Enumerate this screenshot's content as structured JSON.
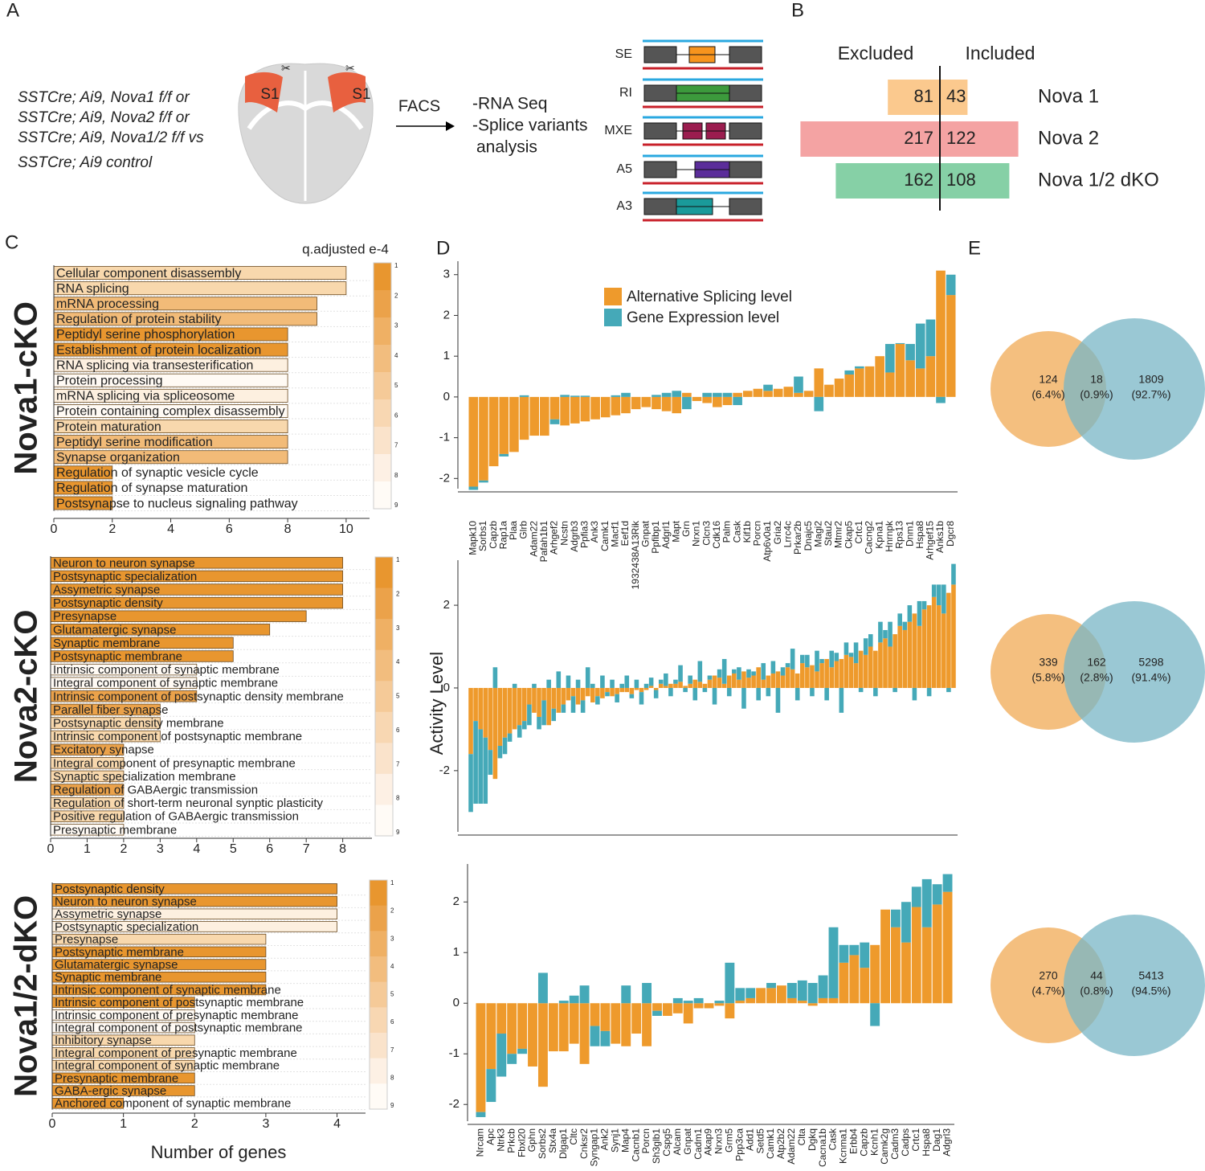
{
  "panel_labels": [
    "A",
    "B",
    "C",
    "D",
    "E"
  ],
  "panel_a": {
    "genotypes": [
      "SSTCre; Ai9, Nova1 f/f or",
      "SSTCre; Ai9, Nova2 f/f or",
      "SSTCre; Ai9, Nova1/2 f/f vs",
      "SSTCre; Ai9 control"
    ],
    "regions": [
      "S1",
      "S1"
    ],
    "facs": "FACS",
    "analysis": [
      "-RNA Seq",
      "-Splice variants",
      "analysis"
    ],
    "events": [
      "SE",
      "RI",
      "MXE",
      "A5",
      "A3"
    ]
  },
  "chart_data": [
    {
      "type": "diverging_bar",
      "categories": [
        "Nova 1",
        "Nova 2",
        "Nova 1/2 dKO"
      ],
      "colors": [
        "#fbc98e",
        "#f4a3a3",
        "#86d0a6"
      ],
      "series": [
        {
          "name": "Excluded",
          "values": [
            81,
            217,
            162
          ]
        },
        {
          "name": "Included",
          "values": [
            43,
            122,
            108
          ]
        }
      ]
    },
    {
      "type": "hbar",
      "row_label": "Nova1-cKO",
      "row_color": "#f7b777",
      "xlim": [
        0,
        10.8
      ],
      "xticks": [
        0,
        2,
        4,
        6,
        8,
        10
      ],
      "categories": [
        "Cellular component disassembly",
        "RNA splicing",
        "mRNA processing",
        "Regulation of protein stability",
        "Peptidyl serine phosphorylation",
        "Establishment of protein localization",
        "RNA splicing via transesterification",
        "Protein processing",
        "mRNA splicing via spliceosome",
        "Protein containing complex disassembly",
        "Protein maturation",
        "Peptidyl serine modification",
        "Synapse organization",
        "Regulation of synaptic vesicle cycle",
        "Regulation of synapse maturation",
        "Postsynapse to nucleus signaling pathway"
      ],
      "values": [
        10,
        10,
        9,
        9,
        8,
        8,
        8,
        8,
        8,
        8,
        8,
        8,
        8,
        2,
        2,
        2
      ],
      "colors": [
        "#f8d8ad",
        "#f8d8ad",
        "#f2bb78",
        "#f2bb78",
        "#e8962f",
        "#e8962f",
        "#fdf0e0",
        "#fffaf4",
        "#fdf0e0",
        "#fffaf4",
        "#f8d8ad",
        "#f2bb78",
        "#f2bb78",
        "#e8962f",
        "#e8962f",
        "#e8962f"
      ],
      "colorbar": {
        "label": "q.adjusted e-4",
        "ticks": [
          1,
          2,
          3,
          4,
          5,
          6,
          7,
          8,
          9
        ],
        "colors": [
          "#e8962f",
          "#eba24a",
          "#efb064",
          "#f2bd7e",
          "#f5ca98",
          "#f8d7b2",
          "#fae3cb",
          "#fdf0e4",
          "#fffbf6"
        ]
      }
    },
    {
      "type": "hbar",
      "row_label": "Nova2-cKO",
      "row_color": "#f4a0a0",
      "xlim": [
        0,
        8.8
      ],
      "xticks": [
        0,
        1,
        2,
        3,
        4,
        5,
        6,
        7,
        8
      ],
      "categories": [
        "Neuron to neuron synapse",
        "Postsynaptic specialization",
        "Assymetric synapse",
        "Postsynaptic density",
        "Presynapse",
        "Glutamatergic synapse",
        "Synaptic membrane",
        "Postsynaptic membrane",
        "Intrinsic component of synaptic membrane",
        "Integral component of synaptic membrane",
        "Intrinsic component of postsynaptic density membrane",
        "Parallel fiber synapse",
        "Postsynaptic density membrane",
        "Intrinsic component of postsynaptic membrane",
        "Excitatory synapse",
        "Integral component of presynaptic membrane",
        "Synaptic specialization membrane",
        "Regulation of GABAergic transmission",
        "Regulation of short-term neuronal synptic plasticity",
        "Positive regulation of GABAergic transmission",
        "Presynaptic membrane"
      ],
      "values": [
        8,
        8,
        8,
        8,
        7,
        6,
        5,
        5,
        4,
        4,
        4,
        3,
        3,
        3,
        2,
        2,
        2,
        2,
        2,
        2,
        2
      ],
      "colors": [
        "#e8962f",
        "#e8962f",
        "#e8962f",
        "#e8962f",
        "#e8962f",
        "#e8962f",
        "#e8962f",
        "#e8962f",
        "#fffaf4",
        "#fffaf4",
        "#eba24a",
        "#eba24a",
        "#f8d8ad",
        "#f8d8ad",
        "#eba24a",
        "#f8d8ad",
        "#f8d8ad",
        "#eba24a",
        "#f8d8ad",
        "#f8d8ad",
        "#fffaf4"
      ],
      "colorbar": {
        "ticks": [
          1,
          2,
          3,
          4,
          5,
          6,
          7,
          8,
          9
        ],
        "colors": [
          "#e8962f",
          "#eba24a",
          "#efb064",
          "#f2bd7e",
          "#f5ca98",
          "#f8d7b2",
          "#fae3cb",
          "#fdf0e4",
          "#fffbf6"
        ]
      }
    },
    {
      "type": "hbar",
      "row_label": "Nova1/2-dKO",
      "row_color": "#5fc08f",
      "xlim": [
        0,
        4.4
      ],
      "xticks": [
        0,
        1,
        2,
        3,
        4
      ],
      "xlabel": "Number of genes",
      "categories": [
        "Postsynaptic density",
        "Neuron to neuron synapse",
        "Assymetric synapse",
        "Postsynaptic specialization",
        "Presynapse",
        "Postsynaptic membrane",
        "Glutamatergic synapse",
        "Synaptic membrane",
        "Intrinsic component of synaptic membrane",
        "Intrinsic component of postsynaptic membrane",
        "Intrinsic component of presynaptic membrane",
        "Integral component of postsynaptic membrane",
        "Inhibitory synapse",
        "Integral component of presynaptic membrane",
        "Integral component of synaptic membrane",
        "Presynaptic membrane",
        "GABA-ergic synapse",
        "Anchored component of synaptic membrane"
      ],
      "values": [
        4,
        4,
        4,
        4,
        3,
        3,
        3,
        3,
        3,
        2,
        2,
        2,
        2,
        2,
        2,
        2,
        2,
        1
      ],
      "colors": [
        "#e8962f",
        "#e8962f",
        "#fdf0e0",
        "#fdf0e0",
        "#f8d8ad",
        "#e8962f",
        "#e8962f",
        "#e8962f",
        "#e8962f",
        "#e8962f",
        "#fffaf4",
        "#fffaf4",
        "#f8d8ad",
        "#f8d8ad",
        "#f8d8ad",
        "#e8962f",
        "#e8962f",
        "#e8962f"
      ],
      "colorbar": {
        "ticks": [
          1,
          2,
          3,
          4,
          5,
          6,
          7,
          8,
          9
        ],
        "colors": [
          "#e8962f",
          "#eba24a",
          "#efb064",
          "#f2bd7e",
          "#f5ca98",
          "#f8d7b2",
          "#fae3cb",
          "#fdf0e4",
          "#fffbf6"
        ]
      }
    },
    {
      "type": "stacked_bar",
      "ylim": [
        -2.25,
        3.33
      ],
      "yticks": [
        -2,
        -1,
        0,
        1,
        2,
        3
      ],
      "categories": [
        "Mapk10",
        "Sorbs1",
        "Capzb",
        "Rap1a",
        "Plaa",
        "Glrb",
        "Adam22",
        "Pafah1b1",
        "Arhgef2",
        "Ncstn",
        "Adgrb3",
        "Ppfia3",
        "Ank3",
        "Camk1",
        "Macf1",
        "Eef1d",
        "1932438A13Rik",
        "Gnpat",
        "Ppfibp1",
        "Adgrl1",
        "Mapt",
        "Grn",
        "Nrxn1",
        "Clcn3",
        "Cdk16",
        "Palm",
        "Cask",
        "Kif1b",
        "Porcn",
        "Atp6v0a1",
        "Gria2",
        "Lrrc4c",
        "Prkar2b",
        "Dnajc5",
        "Magi2",
        "Stau2",
        "Mtmr2",
        "Ckap5",
        "Crtc1",
        "Cacng2",
        "Kpna1",
        "Hnrnpk",
        "Rps13",
        "Dnm1",
        "Hspa8",
        "Arhgef15",
        "Anks1b",
        "Dgcr8"
      ],
      "series": [
        {
          "name": "Alternative Splicing level",
          "color": "#ee9a2c",
          "values": [
            -2.2,
            -2.05,
            -1.7,
            -1.4,
            -1.35,
            -1.05,
            -0.95,
            -0.95,
            -0.55,
            -0.7,
            -0.65,
            -0.6,
            -0.55,
            -0.5,
            -0.45,
            -0.4,
            -0.3,
            -0.25,
            -0.3,
            -0.35,
            -0.4,
            0.1,
            -0.1,
            -0.15,
            -0.25,
            -0.2,
            0.1,
            0.15,
            0.2,
            0.15,
            0.2,
            0.25,
            0.1,
            0.15,
            0.7,
            0.3,
            0.45,
            0.55,
            0.7,
            0.75,
            1.0,
            0.6,
            1.3,
            0.9,
            0.7,
            1.0,
            3.1,
            2.5
          ]
        },
        {
          "name": "Gene Expression level",
          "color": "#45a9b8",
          "values": [
            -0.08,
            -0.05,
            0,
            -0.06,
            0,
            0.04,
            0,
            0,
            -0.12,
            0.05,
            0.03,
            0.03,
            0,
            0,
            0.04,
            0.1,
            0,
            0,
            0.05,
            0.1,
            0.15,
            -0.3,
            0,
            0.1,
            0.1,
            0.1,
            -0.2,
            0,
            0,
            0.15,
            0,
            0,
            0.4,
            0,
            -0.35,
            0,
            0,
            0.1,
            0.05,
            0,
            0,
            0.7,
            0.02,
            0.4,
            1.1,
            0.9,
            -0.15,
            0.5
          ]
        }
      ]
    },
    {
      "type": "stacked_bar",
      "ylim": [
        -3.48,
        3.09
      ],
      "yticks": [
        -2,
        0,
        2
      ],
      "ylabel": "Activity Level",
      "series": [
        {
          "color": "#ee9a2c",
          "values": [
            -1.6,
            -0.8,
            -1.0,
            -1.2,
            -1.5,
            -2.2,
            -1.4,
            -1.2,
            -1.1,
            -1.0,
            -0.9,
            -0.8,
            -0.4,
            -0.6,
            -0.7,
            -0.3,
            -0.9,
            -0.5,
            -0.6,
            -0.4,
            -0.3,
            -0.2,
            -0.4,
            -0.3,
            -0.2,
            -0.35,
            -0.2,
            -0.25,
            -0.1,
            -0.2,
            -0.15,
            -0.1,
            -0.1,
            -0.15,
            -0.05,
            -0.1,
            -0.05,
            0.05,
            -0.05,
            0.1,
            0.05,
            0.1,
            0.1,
            0.15,
            0.05,
            0.1,
            0.2,
            0.15,
            0.1,
            0.2,
            0.3,
            0.25,
            0.1,
            0.3,
            0.35,
            0.2,
            0.4,
            0.25,
            0.3,
            0.5,
            0.2,
            0.3,
            0.35,
            0.4,
            0.3,
            0.5,
            0.45,
            0.35,
            0.6,
            0.5,
            0.55,
            0.4,
            0.6,
            0.7,
            0.5,
            0.65,
            0.7,
            0.8,
            0.75,
            0.6,
            0.9,
            0.8,
            1.0,
            0.9,
            1.1,
            1.2,
            1.0,
            1.3,
            1.5,
            1.4,
            1.6,
            1.8,
            1.5,
            1.9,
            2.0,
            2.2,
            2.0,
            1.8,
            2.3,
            2.5
          ]
        },
        {
          "color": "#45a9b8",
          "values": [
            -1.4,
            -2.0,
            -1.8,
            -1.6,
            -0.6,
            0.5,
            -0.3,
            -0.4,
            -0.2,
            0.1,
            -0.3,
            -0.2,
            -0.5,
            0.1,
            -0.3,
            -0.6,
            0.2,
            -0.3,
            0.4,
            -0.2,
            0.3,
            -0.4,
            0.2,
            -0.3,
            0.5,
            0.1,
            -0.2,
            0.3,
            -0.1,
            0.2,
            -0.2,
            0.1,
            0.3,
            -0.1,
            0.2,
            -0.3,
            0.1,
            0.2,
            -0.2,
            0.1,
            0.3,
            -0.2,
            0.1,
            0.4,
            -0.1,
            0.2,
            -0.3,
            0.5,
            -0.1,
            0.1,
            -0.4,
            0.2,
            0.6,
            -0.2,
            0.1,
            0.3,
            -0.5,
            0.2,
            0.1,
            -0.3,
            0.4,
            -0.2,
            0.3,
            -0.6,
            0.2,
            0.1,
            0.5,
            -0.3,
            0.2,
            0.3,
            -0.2,
            0.5,
            0.1,
            -0.3,
            0.4,
            0.2,
            -0.6,
            0.3,
            0.1,
            0.5,
            -0.1,
            0.4,
            0.3,
            -0.2,
            0.5,
            0.2,
            0.6,
            -0.1,
            0.3,
            0.2,
            0.4,
            -0.3,
            0.6,
            0.2,
            -0.2,
            0.3,
            0.5,
            0.7,
            -0.1,
            0.5
          ]
        }
      ]
    },
    {
      "type": "stacked_bar",
      "ylim": [
        -2.33,
        2.75
      ],
      "yticks": [
        -2,
        -1,
        0,
        1,
        2
      ],
      "categories": [
        "Nrcam",
        "Apc",
        "Ntrk3",
        "Prkcb",
        "Fbxl20",
        "Gphn",
        "Sorbs2",
        "Stx4a",
        "Dlgap1",
        "Cltc",
        "Cnksr2",
        "Syngap1",
        "Ank2",
        "Synj1",
        "Map4",
        "Cacnb1",
        "Porcn",
        "Sh3glb1",
        "Cspg5",
        "Alcam",
        "Gnpat",
        "Cadm1",
        "Akap9",
        "Nrxn3",
        "Grm5",
        "Ppp3ca",
        "Add1",
        "Setd5",
        "Camk1",
        "Atp2b2",
        "Adam22",
        "Clta",
        "Dgkq",
        "Cacna1b",
        "Cask",
        "Kcnma1",
        "Erbb4",
        "Capzb",
        "Kcnh1",
        "Camk2g",
        "Cadm3",
        "Cadps",
        "Crtc1",
        "Hspa8",
        "Dag1",
        "Adgrl3"
      ],
      "series": [
        {
          "color": "#ee9a2c",
          "values": [
            -2.15,
            -1.3,
            -0.6,
            -1.0,
            -0.9,
            -1.25,
            -1.65,
            -0.95,
            -0.95,
            -0.8,
            -1.2,
            -0.45,
            -0.55,
            -0.8,
            -0.85,
            -0.6,
            -0.85,
            -0.15,
            -0.25,
            -0.2,
            -0.4,
            -0.1,
            -0.1,
            -0.05,
            -0.3,
            0.05,
            0.1,
            0.3,
            0.3,
            0.35,
            0.1,
            0.05,
            -0.05,
            0.1,
            0.1,
            0.8,
            0.95,
            0.7,
            1.15,
            1.85,
            1.5,
            1.2,
            1.9,
            1.5,
            1.95,
            2.2
          ]
        },
        {
          "color": "#45a9b8",
          "values": [
            -0.1,
            -0.65,
            -0.85,
            -0.2,
            -0.1,
            0,
            0.6,
            0,
            0.05,
            0.15,
            0.35,
            -0.4,
            -0.3,
            0,
            0.35,
            0,
            0.4,
            -0.1,
            0,
            0.1,
            0.05,
            0.1,
            0,
            0.05,
            0.8,
            0.25,
            0.2,
            0,
            0.1,
            0,
            0.3,
            0.4,
            0.4,
            0.45,
            1.4,
            0.35,
            0.2,
            0.5,
            -0.45,
            0,
            0.35,
            0.8,
            0.4,
            0.95,
            0.4,
            0.35
          ]
        }
      ]
    },
    {
      "type": "venn",
      "values": [
        124,
        18,
        1809
      ],
      "share_labels": [
        "(6.4%)",
        "(0.9%)",
        "(92.7%)"
      ],
      "colors": [
        "#f2b468",
        "#78b6c6"
      ]
    },
    {
      "type": "venn",
      "values": [
        339,
        162,
        5298
      ],
      "share_labels": [
        "(5.8%)",
        "(2.8%)",
        "(91.4%)"
      ],
      "colors": [
        "#f2b468",
        "#78b6c6"
      ]
    },
    {
      "type": "venn",
      "values": [
        270,
        44,
        5413
      ],
      "share_labels": [
        "(4.7%)",
        "(0.8%)",
        "(94.5%)"
      ],
      "colors": [
        "#f2b468",
        "#78b6c6"
      ]
    }
  ]
}
